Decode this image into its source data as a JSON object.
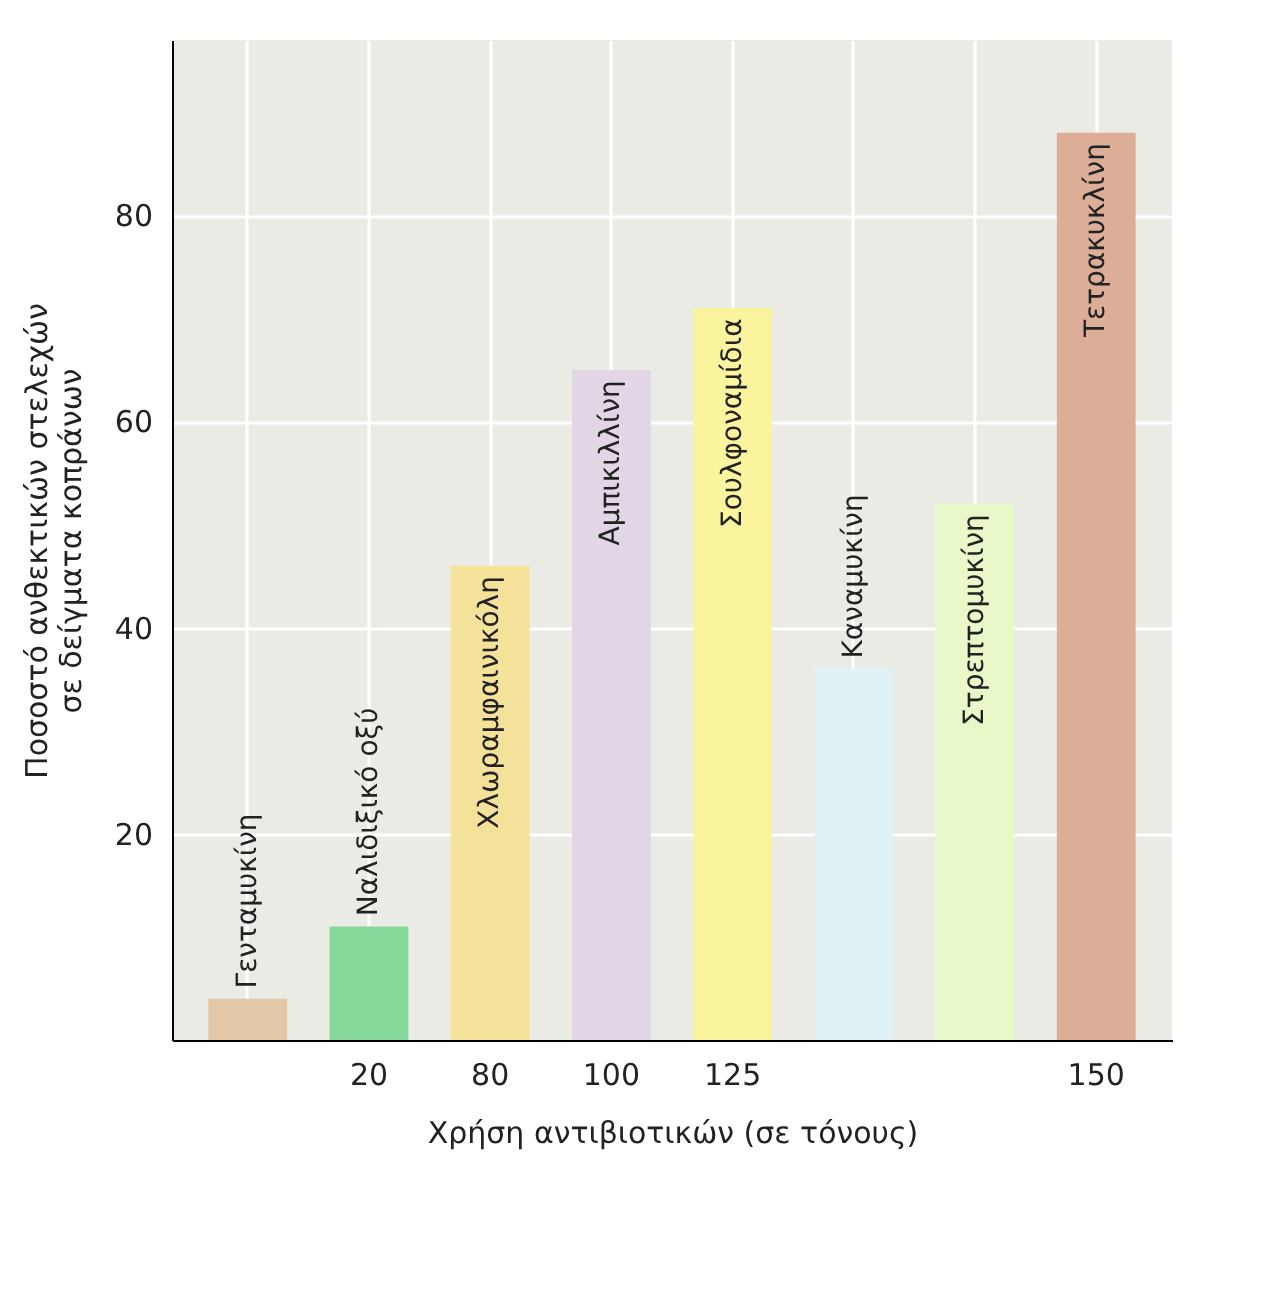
{
  "chart_data": {
    "type": "bar",
    "xlabel": "Χρήση αντιβιοτικών (σε τόνους)",
    "ylabel": "Ποσοστό ανθεκτικών στελεχών\nσε δείγματα κοπράνων",
    "categories": [
      null,
      "20",
      "80",
      "100",
      "125",
      null,
      null,
      "150"
    ],
    "series": [
      {
        "name": "Γενταμυκίνη",
        "color": "#e3c8a8",
        "values": [
          4,
          null,
          null,
          null,
          null,
          null,
          null,
          null
        ]
      },
      {
        "name": "Ναλιδιξικό οξύ",
        "color": "#86d99a",
        "values": [
          null,
          11,
          null,
          null,
          null,
          null,
          null,
          null
        ]
      },
      {
        "name": "Χλωραμφαινικόλη",
        "color": "#f5e29a",
        "values": [
          null,
          null,
          46,
          null,
          null,
          null,
          null,
          null
        ]
      },
      {
        "name": "Αμπικιλλίνη",
        "color": "#e2d6e6",
        "values": [
          null,
          null,
          null,
          65,
          null,
          null,
          null,
          null
        ]
      },
      {
        "name": "Σουλφοναμίδια",
        "color": "#fbf49e",
        "values": [
          null,
          null,
          null,
          null,
          71,
          null,
          null,
          null
        ]
      },
      {
        "name": "Καναμυκίνη",
        "color": "#dff3f6",
        "values": [
          null,
          null,
          null,
          null,
          null,
          36,
          null,
          null
        ]
      },
      {
        "name": "Στρεπτομυκίνη",
        "color": "#e8f8c8",
        "values": [
          null,
          null,
          null,
          null,
          null,
          null,
          52,
          null
        ]
      },
      {
        "name": "Τετρακυκλίνη",
        "color": "#dcae98",
        "values": [
          null,
          null,
          null,
          null,
          null,
          null,
          null,
          88
        ]
      }
    ],
    "ylim": [
      0,
      97
    ],
    "yticks": [
      20,
      40,
      60,
      80
    ],
    "grid": true
  }
}
